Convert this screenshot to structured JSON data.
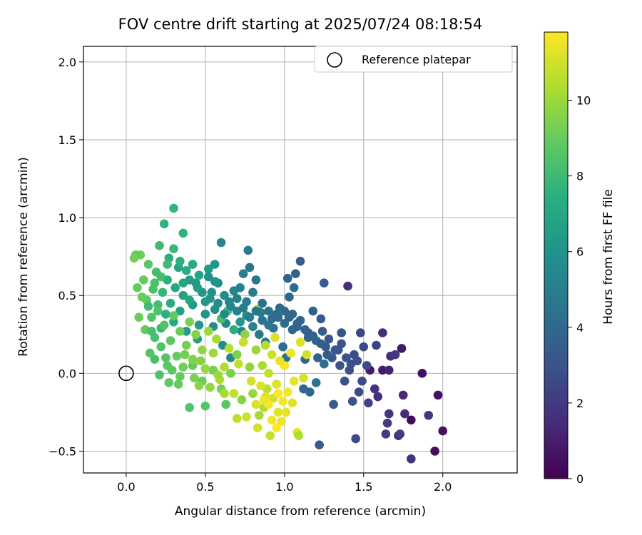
{
  "chart_data": {
    "type": "scatter",
    "title": "FOV centre drift starting at 2025/07/24 08:18:54",
    "xlabel": "Angular distance from reference (arcmin)",
    "ylabel": "Rotation from reference (arcmin)",
    "xlim": [
      -0.27,
      2.47
    ],
    "ylim": [
      -0.64,
      2.1
    ],
    "xticks": [
      0.0,
      0.5,
      1.0,
      1.5,
      2.0
    ],
    "xtick_labels": [
      "0.0",
      "0.5",
      "1.0",
      "1.5",
      "2.0"
    ],
    "yticks": [
      -0.5,
      0.0,
      0.5,
      1.0,
      1.5,
      2.0
    ],
    "ytick_labels": [
      "−0.5",
      "0.0",
      "0.5",
      "1.0",
      "1.5",
      "2.0"
    ],
    "grid": true,
    "legend": {
      "placement": "top-right",
      "entries": [
        {
          "label": "Reference platepar",
          "marker": "open-circle"
        }
      ]
    },
    "reference_point": {
      "x": 0.0,
      "y": 0.0
    },
    "colorbar": {
      "label": "Hours from first FF file",
      "range": [
        0,
        11.8
      ],
      "ticks": [
        0,
        2,
        4,
        6,
        8,
        10
      ],
      "tick_labels": [
        "0",
        "2",
        "4",
        "6",
        "8",
        "10"
      ],
      "colormap": "viridis"
    },
    "points": [
      [
        1.8,
        -0.3,
        0.3
      ],
      [
        1.95,
        -0.5,
        0.4
      ],
      [
        2.0,
        -0.37,
        0.5
      ],
      [
        1.97,
        -0.14,
        0.6
      ],
      [
        1.87,
        0.0,
        0.4
      ],
      [
        1.74,
        0.16,
        0.8
      ],
      [
        1.62,
        0.02,
        0.9
      ],
      [
        1.54,
        0.02,
        0.8
      ],
      [
        1.66,
        0.02,
        1.1
      ],
      [
        1.72,
        -0.4,
        1.3
      ],
      [
        1.75,
        -0.14,
        1.4
      ],
      [
        1.76,
        -0.26,
        1.5
      ],
      [
        1.67,
        0.11,
        1.5
      ],
      [
        1.8,
        -0.55,
        1.8
      ],
      [
        1.7,
        0.12,
        1.9
      ],
      [
        1.62,
        0.26,
        1.4
      ],
      [
        1.59,
        -0.15,
        1.6
      ],
      [
        1.57,
        -0.1,
        1.7
      ],
      [
        1.66,
        -0.26,
        1.8
      ],
      [
        1.91,
        -0.27,
        1.9
      ],
      [
        1.65,
        -0.32,
        2.0
      ],
      [
        1.64,
        -0.39,
        2.2
      ],
      [
        1.4,
        0.56,
        1.5
      ],
      [
        1.73,
        -0.39,
        2.1
      ],
      [
        1.53,
        -0.19,
        2.3
      ],
      [
        1.48,
        0.26,
        2.5
      ],
      [
        1.5,
        0.17,
        2.6
      ],
      [
        1.45,
        -0.42,
        2.6
      ],
      [
        1.49,
        -0.05,
        2.7
      ],
      [
        1.58,
        0.18,
        2.4
      ],
      [
        1.47,
        -0.12,
        2.8
      ],
      [
        1.42,
        0.06,
        2.9
      ],
      [
        1.36,
        0.26,
        3.0
      ],
      [
        1.39,
        0.1,
        3.0
      ],
      [
        1.43,
        -0.18,
        3.1
      ],
      [
        1.34,
        0.15,
        3.0
      ],
      [
        1.28,
        0.22,
        3.2
      ],
      [
        1.25,
        0.58,
        3.4
      ],
      [
        1.31,
        -0.2,
        3.3
      ],
      [
        1.23,
        0.35,
        3.4
      ],
      [
        1.22,
        -0.46,
        3.5
      ],
      [
        1.24,
        0.27,
        3.5
      ],
      [
        1.18,
        0.4,
        3.6
      ],
      [
        1.21,
        0.1,
        3.6
      ],
      [
        1.15,
        0.23,
        3.7
      ],
      [
        1.1,
        0.72,
        3.5
      ],
      [
        1.07,
        0.64,
        3.6
      ],
      [
        1.02,
        0.61,
        3.7
      ],
      [
        1.13,
        0.09,
        3.8
      ],
      [
        1.08,
        0.32,
        3.8
      ],
      [
        1.05,
        0.28,
        3.9
      ],
      [
        1.12,
        -0.1,
        3.9
      ],
      [
        1.16,
        -0.12,
        4.0
      ],
      [
        1.03,
        0.49,
        3.9
      ],
      [
        1.0,
        0.4,
        4.0
      ],
      [
        0.96,
        0.36,
        4.1
      ],
      [
        0.99,
        0.17,
        4.2
      ],
      [
        1.06,
        0.55,
        4.2
      ],
      [
        0.93,
        0.29,
        4.3
      ],
      [
        1.01,
        0.1,
        4.3
      ],
      [
        1.2,
        -0.06,
        4.4
      ],
      [
        1.25,
        0.06,
        4.4
      ],
      [
        0.9,
        0.4,
        4.5
      ],
      [
        0.86,
        0.34,
        4.5
      ],
      [
        0.82,
        0.6,
        4.6
      ],
      [
        0.78,
        0.68,
        4.6
      ],
      [
        0.77,
        0.79,
        4.8
      ],
      [
        0.88,
        0.2,
        4.7
      ],
      [
        0.84,
        0.25,
        4.8
      ],
      [
        0.8,
        0.52,
        4.9
      ],
      [
        0.74,
        0.64,
        5.0
      ],
      [
        0.76,
        0.46,
        5.0
      ],
      [
        0.72,
        0.55,
        5.1
      ],
      [
        0.7,
        0.4,
        5.2
      ],
      [
        0.73,
        0.27,
        5.2
      ],
      [
        0.68,
        0.53,
        5.3
      ],
      [
        0.65,
        0.46,
        5.3
      ],
      [
        0.63,
        0.32,
        5.4
      ],
      [
        0.6,
        0.84,
        5.4
      ],
      [
        0.66,
        0.1,
        5.5
      ],
      [
        0.62,
        0.5,
        5.6
      ],
      [
        0.58,
        0.58,
        5.6
      ],
      [
        0.56,
        0.41,
        5.7
      ],
      [
        0.61,
        0.18,
        5.7
      ],
      [
        0.55,
        0.3,
        5.8
      ],
      [
        0.52,
        0.62,
        5.9
      ],
      [
        0.53,
        0.48,
        6.0
      ],
      [
        0.5,
        0.38,
        6.0
      ],
      [
        0.48,
        0.52,
        6.1
      ],
      [
        0.56,
        0.7,
        6.2
      ],
      [
        0.46,
        0.31,
        6.3
      ],
      [
        0.44,
        0.58,
        6.3
      ],
      [
        0.42,
        0.44,
        6.4
      ],
      [
        0.4,
        0.6,
        6.5
      ],
      [
        0.38,
        0.27,
        6.6
      ],
      [
        0.45,
        0.22,
        6.6
      ],
      [
        0.36,
        0.5,
        6.7
      ],
      [
        0.34,
        0.4,
        6.8
      ],
      [
        0.33,
        0.68,
        6.9
      ],
      [
        0.31,
        0.55,
        7.0
      ],
      [
        0.3,
        0.33,
        7.1
      ],
      [
        0.28,
        0.45,
        7.2
      ],
      [
        0.27,
        0.74,
        7.3
      ],
      [
        0.26,
        0.6,
        7.4
      ],
      [
        0.25,
        0.38,
        7.5
      ],
      [
        0.24,
        0.96,
        7.6
      ],
      [
        0.3,
        1.06,
        7.7
      ],
      [
        0.36,
        0.9,
        7.6
      ],
      [
        0.23,
        0.52,
        7.8
      ],
      [
        0.22,
        0.29,
        7.9
      ],
      [
        0.21,
        0.82,
        8.0
      ],
      [
        0.2,
        0.44,
        8.1
      ],
      [
        0.19,
        0.65,
        8.2
      ],
      [
        0.18,
        0.23,
        8.3
      ],
      [
        0.17,
        0.54,
        8.4
      ],
      [
        0.16,
        0.36,
        8.5
      ],
      [
        0.15,
        0.13,
        8.6
      ],
      [
        0.14,
        0.7,
        8.7
      ],
      [
        0.13,
        0.47,
        8.8
      ],
      [
        0.12,
        0.28,
        8.9
      ],
      [
        0.11,
        0.6,
        9.0
      ],
      [
        0.1,
        0.49,
        9.1
      ],
      [
        0.09,
        0.76,
        9.2
      ],
      [
        0.08,
        0.36,
        9.1
      ],
      [
        0.07,
        0.55,
        9.0
      ],
      [
        0.06,
        0.76,
        8.9
      ],
      [
        0.05,
        0.74,
        9.2
      ],
      [
        0.4,
        -0.22,
        8.5
      ],
      [
        0.5,
        -0.21,
        8.6
      ],
      [
        0.63,
        -0.2,
        8.7
      ],
      [
        0.27,
        -0.06,
        8.8
      ],
      [
        0.34,
        -0.02,
        8.9
      ],
      [
        0.42,
        0.05,
        9.0
      ],
      [
        0.48,
        -0.05,
        9.1
      ],
      [
        0.55,
        0.02,
        9.2
      ],
      [
        0.6,
        -0.1,
        9.3
      ],
      [
        0.66,
        0.0,
        9.4
      ],
      [
        0.7,
        0.12,
        9.5
      ],
      [
        0.73,
        -0.17,
        9.6
      ],
      [
        0.75,
        0.25,
        9.7
      ],
      [
        0.78,
        0.04,
        9.8
      ],
      [
        0.8,
        -0.13,
        9.9
      ],
      [
        0.82,
        0.15,
        10.0
      ],
      [
        0.83,
        0.41,
        10.1
      ],
      [
        0.84,
        -0.27,
        10.2
      ],
      [
        0.86,
        0.05,
        10.3
      ],
      [
        0.87,
        -0.22,
        10.4
      ],
      [
        0.88,
        0.18,
        10.5
      ],
      [
        0.89,
        -0.1,
        10.6
      ],
      [
        0.9,
        0.0,
        10.7
      ],
      [
        0.91,
        -0.4,
        10.8
      ],
      [
        0.92,
        0.12,
        10.9
      ],
      [
        0.93,
        -0.16,
        11.0
      ],
      [
        0.94,
        0.23,
        11.1
      ],
      [
        0.95,
        -0.07,
        11.2
      ],
      [
        0.96,
        -0.25,
        11.3
      ],
      [
        0.97,
        0.08,
        11.4
      ],
      [
        0.98,
        -0.31,
        11.5
      ],
      [
        0.99,
        -0.18,
        11.6
      ],
      [
        1.0,
        0.05,
        11.7
      ],
      [
        1.02,
        -0.12,
        11.6
      ],
      [
        1.04,
        0.13,
        11.5
      ],
      [
        1.06,
        -0.05,
        11.4
      ],
      [
        1.08,
        -0.38,
        11.3
      ],
      [
        1.1,
        0.2,
        11.2
      ],
      [
        1.12,
        -0.03,
        11.1
      ],
      [
        1.14,
        0.12,
        11.0
      ],
      [
        0.88,
        -0.15,
        11.3
      ],
      [
        0.85,
        -0.08,
        11.2
      ],
      [
        0.82,
        -0.2,
        11.1
      ],
      [
        0.79,
        -0.05,
        11.0
      ],
      [
        0.76,
        -0.28,
        10.9
      ],
      [
        0.74,
        0.2,
        10.8
      ],
      [
        0.71,
        0.06,
        10.7
      ],
      [
        0.68,
        -0.13,
        10.6
      ],
      [
        0.65,
        0.16,
        10.5
      ],
      [
        0.62,
        0.04,
        10.4
      ],
      [
        0.59,
        -0.04,
        10.3
      ],
      [
        0.57,
        0.22,
        10.2
      ],
      [
        0.55,
        0.13,
        10.1
      ],
      [
        0.52,
        0.27,
        10.0
      ],
      [
        0.5,
        0.03,
        9.9
      ],
      [
        0.48,
        0.15,
        9.8
      ],
      [
        0.46,
        -0.08,
        9.7
      ],
      [
        0.44,
        0.25,
        9.6
      ],
      [
        0.42,
        0.09,
        9.5
      ],
      [
        0.4,
        0.33,
        9.4
      ],
      [
        0.38,
        0.18,
        9.3
      ],
      [
        0.36,
        0.04,
        9.2
      ],
      [
        0.34,
        0.27,
        9.1
      ],
      [
        0.32,
        0.11,
        9.0
      ],
      [
        0.3,
        0.37,
        8.9
      ],
      [
        0.28,
        0.21,
        8.8
      ],
      [
        0.26,
        0.05,
        8.7
      ],
      [
        0.24,
        0.31,
        8.6
      ],
      [
        0.22,
        0.17,
        8.5
      ],
      [
        0.2,
        0.4,
        8.4
      ],
      [
        0.18,
        0.09,
        8.3
      ],
      [
        0.16,
        0.27,
        8.2
      ],
      [
        0.14,
        0.43,
        8.1
      ],
      [
        0.6,
        0.35,
        8.3
      ],
      [
        0.64,
        0.4,
        8.2
      ],
      [
        0.68,
        0.28,
        7.4
      ],
      [
        0.72,
        0.33,
        6.2
      ],
      [
        0.76,
        0.37,
        5.8
      ],
      [
        0.8,
        0.3,
        5.3
      ],
      [
        0.85,
        0.39,
        4.9
      ],
      [
        0.9,
        0.31,
        4.6
      ],
      [
        0.95,
        0.38,
        4.3
      ],
      [
        1.0,
        0.32,
        4.1
      ],
      [
        1.05,
        0.38,
        3.9
      ],
      [
        1.1,
        0.34,
        3.8
      ],
      [
        1.15,
        0.26,
        3.7
      ],
      [
        1.2,
        0.21,
        3.6
      ],
      [
        1.26,
        0.17,
        3.3
      ],
      [
        1.3,
        0.1,
        3.2
      ],
      [
        1.35,
        0.05,
        3.1
      ],
      [
        1.38,
        -0.05,
        3.0
      ],
      [
        1.44,
        0.12,
        2.8
      ],
      [
        1.52,
        0.05,
        2.6
      ],
      [
        0.95,
        -0.35,
        11.8
      ],
      [
        0.92,
        -0.3,
        11.6
      ],
      [
        0.9,
        -0.2,
        11.7
      ],
      [
        0.96,
        -0.13,
        11.8
      ],
      [
        0.87,
        -0.17,
        11.5
      ],
      [
        1.01,
        -0.25,
        11.4
      ],
      [
        1.05,
        -0.19,
        11.3
      ],
      [
        0.83,
        -0.35,
        11.0
      ],
      [
        0.7,
        -0.29,
        10.6
      ],
      [
        1.09,
        -0.4,
        10.4
      ],
      [
        0.62,
        -0.13,
        10.2
      ],
      [
        0.58,
        -0.01,
        10.0
      ],
      [
        0.53,
        -0.09,
        9.8
      ],
      [
        0.47,
        0.08,
        9.6
      ],
      [
        0.43,
        -0.03,
        9.4
      ],
      [
        0.37,
        0.12,
        9.2
      ],
      [
        0.33,
        -0.07,
        9.0
      ],
      [
        0.29,
        0.02,
        8.8
      ],
      [
        0.25,
        0.1,
        8.6
      ],
      [
        0.21,
        -0.01,
        8.4
      ],
      [
        0.36,
        0.58,
        7.0
      ],
      [
        0.4,
        0.47,
        6.9
      ],
      [
        0.45,
        0.55,
        6.5
      ],
      [
        0.5,
        0.46,
        6.3
      ],
      [
        0.54,
        0.52,
        6.0
      ],
      [
        0.58,
        0.45,
        5.7
      ],
      [
        0.62,
        0.38,
        5.5
      ],
      [
        0.66,
        0.43,
        5.4
      ],
      [
        0.7,
        0.48,
        5.1
      ],
      [
        0.74,
        0.42,
        5.0
      ],
      [
        0.78,
        0.36,
        4.8
      ],
      [
        0.82,
        0.4,
        4.6
      ],
      [
        0.86,
        0.45,
        4.4
      ],
      [
        0.92,
        0.35,
        4.2
      ],
      [
        0.97,
        0.42,
        4.1
      ],
      [
        1.03,
        0.36,
        3.9
      ],
      [
        1.08,
        0.3,
        3.8
      ],
      [
        1.13,
        0.28,
        3.7
      ],
      [
        1.18,
        0.24,
        3.6
      ],
      [
        1.23,
        0.19,
        3.5
      ],
      [
        1.27,
        0.12,
        3.4
      ],
      [
        1.32,
        0.15,
        3.2
      ],
      [
        1.36,
        0.19,
        3.1
      ],
      [
        1.41,
        0.02,
        3.0
      ],
      [
        1.46,
        0.08,
        2.9
      ],
      [
        0.3,
        0.8,
        7.9
      ],
      [
        0.34,
        0.72,
        7.5
      ],
      [
        0.38,
        0.66,
        7.3
      ],
      [
        0.42,
        0.7,
        7.1
      ],
      [
        0.26,
        0.7,
        8.0
      ],
      [
        0.22,
        0.62,
        8.2
      ],
      [
        0.18,
        0.58,
        8.3
      ],
      [
        0.46,
        0.63,
        6.8
      ],
      [
        0.52,
        0.67,
        6.4
      ],
      [
        0.56,
        0.59,
        6.1
      ]
    ]
  }
}
